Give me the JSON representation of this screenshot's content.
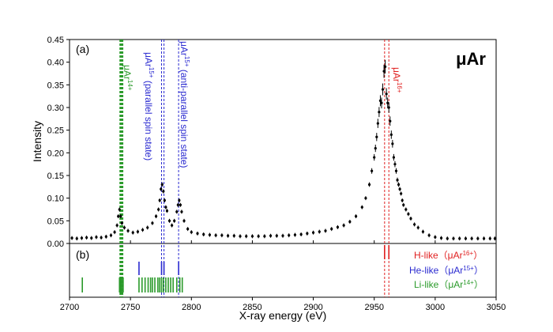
{
  "chart_data": {
    "type": "scatter",
    "main_title": "μAr",
    "xlabel": "X-ray energy (eV)",
    "ylabel": "Intensity",
    "panels": {
      "a": {
        "label": "(a)",
        "ylim": [
          0,
          0.45
        ],
        "yticks": [
          "0.00",
          "0.05",
          "0.10",
          "0.15",
          "0.20",
          "0.25",
          "0.30",
          "0.35",
          "0.40",
          "0.45"
        ]
      },
      "b": {
        "label": "(b)"
      }
    },
    "xlim": [
      2700,
      3050
    ],
    "xticks": [
      "2700",
      "2750",
      "2800",
      "2850",
      "2900",
      "2950",
      "3000",
      "3050"
    ],
    "colors": {
      "li": "#2a9a2a",
      "he": "#2a2ad0",
      "h": "#e02020",
      "data": "#000000"
    },
    "annotations": {
      "li": {
        "base": "μAr",
        "sup": "14+"
      },
      "he_parallel": {
        "base": "μAr",
        "sup": "15+",
        "suffix": " (parallel spin state)"
      },
      "he_anti": {
        "base": "μAr",
        "sup": "15+",
        "suffix": " (anti-parallel spin state)"
      },
      "h": {
        "base": "μAr",
        "sup": "16+"
      }
    },
    "legend": {
      "h": {
        "text": "H-like",
        "paren": "（μAr",
        "sup": "16+",
        "close": "）"
      },
      "he": {
        "text": "He-like",
        "paren": "（μAr",
        "sup": "15+",
        "close": "）"
      },
      "li": {
        "text": "Li-like",
        "paren": "（μAr",
        "sup": "14+",
        "close": "）"
      }
    },
    "reference_lines": {
      "li": [
        2741.3,
        2741.8,
        2742.3,
        2742.8,
        2743.3,
        2743.8
      ],
      "he": [
        2775.5,
        2777.5,
        2789.5
      ],
      "h": [
        2958.5,
        2962.0
      ]
    },
    "transitions": {
      "h": [
        2958.5,
        2962.0
      ],
      "he": [
        2757.0,
        2775.5,
        2777.5,
        2789.5
      ],
      "li": [
        2710.5,
        2741.0,
        2742.0,
        2743.0,
        2744.0,
        2757.0,
        2759.5,
        2762.0,
        2764.5,
        2766.5,
        2768.0,
        2770.0,
        2772.5,
        2774.0,
        2775.5,
        2777.0,
        2779.0,
        2781.0,
        2783.0,
        2785.0,
        2788.0,
        2790.5,
        2792.5
      ]
    },
    "series": [
      {
        "x": [
          2702,
          2706,
          2710,
          2714,
          2718,
          2722,
          2726,
          2730,
          2734,
          2737,
          2739,
          2740,
          2741,
          2742,
          2743,
          2745,
          2748,
          2752,
          2756,
          2760,
          2764,
          2768,
          2771,
          2773,
          2774,
          2775,
          2776,
          2777,
          2778,
          2779,
          2780,
          2782,
          2784,
          2786,
          2788,
          2789,
          2790,
          2791,
          2792,
          2794,
          2797,
          2800,
          2805,
          2810,
          2815,
          2820,
          2825,
          2830,
          2835,
          2840,
          2845,
          2850,
          2855,
          2860,
          2865,
          2870,
          2875,
          2880,
          2885,
          2890,
          2895,
          2900,
          2905,
          2910,
          2915,
          2920,
          2925,
          2930,
          2935,
          2940,
          2943,
          2946,
          2948,
          2950,
          2951,
          2952,
          2953,
          2954,
          2955,
          2956,
          2957,
          2958,
          2959,
          2960,
          2961,
          2962,
          2963,
          2964,
          2965,
          2966,
          2967,
          2968,
          2969,
          2970,
          2971,
          2972,
          2973,
          2974,
          2976,
          2978,
          2980,
          2983,
          2986,
          2990,
          2995,
          3000,
          3005,
          3010,
          3015,
          3020,
          3025,
          3030,
          3035,
          3040,
          3045,
          3049
        ],
        "y": [
          0.012,
          0.011,
          0.012,
          0.013,
          0.012,
          0.014,
          0.013,
          0.015,
          0.018,
          0.025,
          0.04,
          0.06,
          0.075,
          0.06,
          0.045,
          0.035,
          0.028,
          0.024,
          0.026,
          0.03,
          0.035,
          0.045,
          0.06,
          0.075,
          0.095,
          0.12,
          0.13,
          0.115,
          0.095,
          0.08,
          0.072,
          0.05,
          0.04,
          0.05,
          0.07,
          0.085,
          0.095,
          0.085,
          0.07,
          0.05,
          0.032,
          0.025,
          0.022,
          0.02,
          0.019,
          0.018,
          0.018,
          0.017,
          0.017,
          0.016,
          0.016,
          0.016,
          0.016,
          0.016,
          0.017,
          0.017,
          0.017,
          0.018,
          0.019,
          0.02,
          0.022,
          0.024,
          0.026,
          0.028,
          0.032,
          0.036,
          0.04,
          0.048,
          0.06,
          0.08,
          0.1,
          0.13,
          0.16,
          0.19,
          0.21,
          0.235,
          0.265,
          0.29,
          0.315,
          0.31,
          0.34,
          0.38,
          0.39,
          0.33,
          0.31,
          0.3,
          0.27,
          0.24,
          0.22,
          0.19,
          0.175,
          0.16,
          0.14,
          0.13,
          0.12,
          0.11,
          0.095,
          0.085,
          0.075,
          0.065,
          0.055,
          0.042,
          0.035,
          0.026,
          0.018,
          0.014,
          0.012,
          0.011,
          0.011,
          0.011,
          0.011,
          0.011,
          0.011,
          0.011,
          0.011,
          0.011
        ]
      }
    ]
  }
}
